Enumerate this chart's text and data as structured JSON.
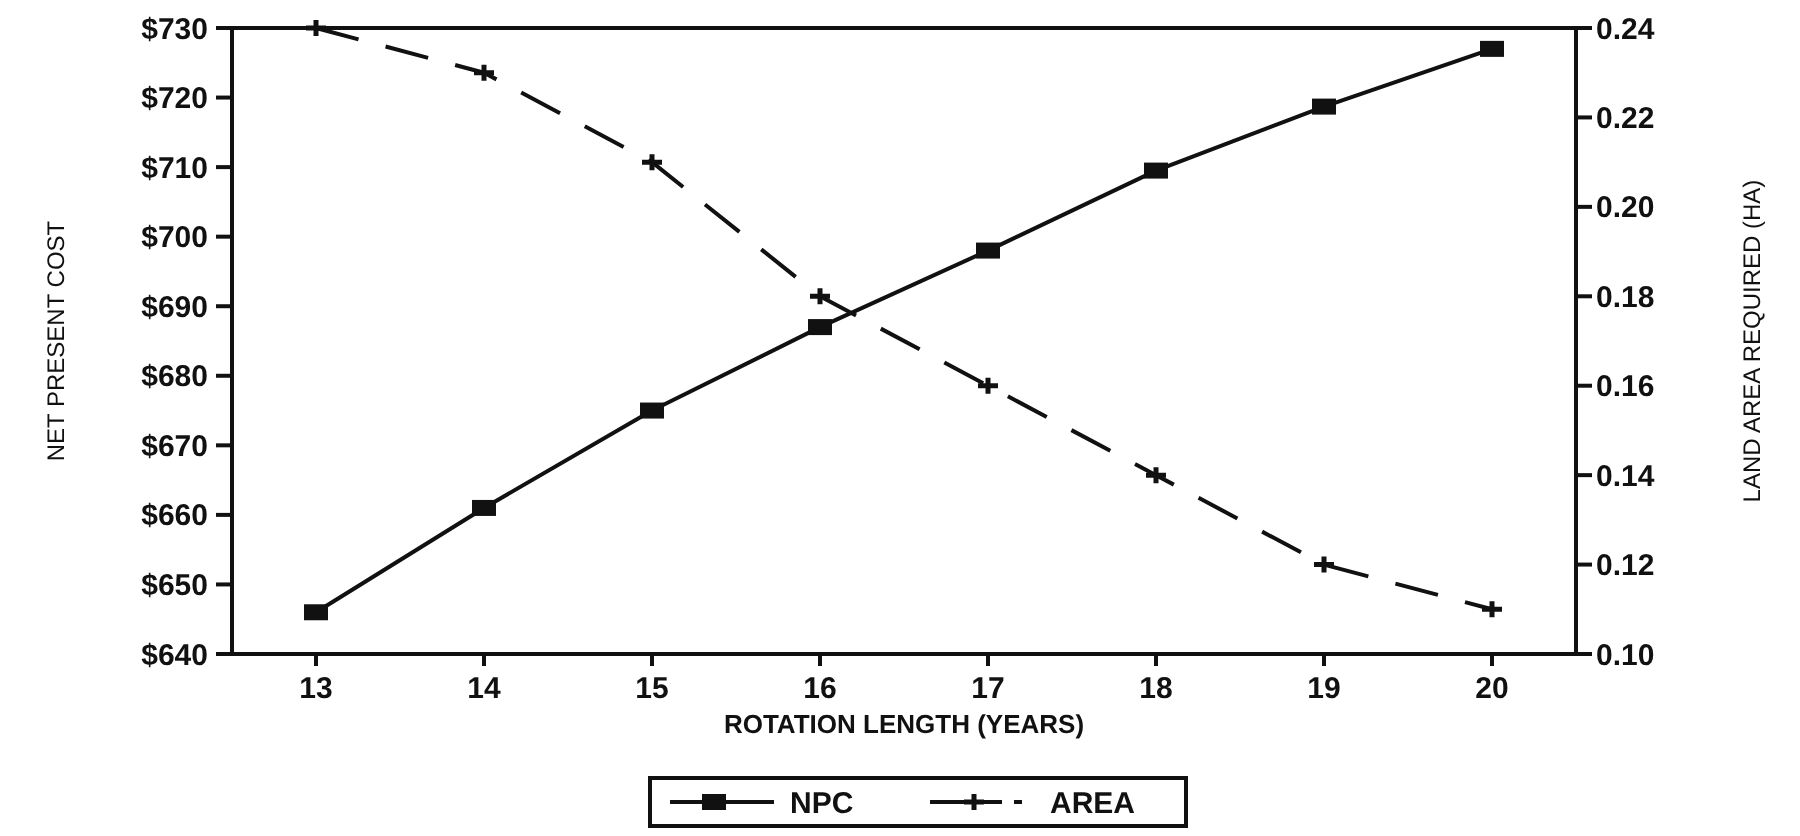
{
  "chart_data": {
    "type": "line",
    "xlabel": "ROTATION LENGTH (YEARS)",
    "ylabel": "NET PRESENT COST",
    "y2label": "LAND AREA REQUIRED (HA)",
    "x": [
      13,
      14,
      15,
      16,
      17,
      18,
      19,
      20
    ],
    "xlim": [
      12.5,
      20.5
    ],
    "xticks": [
      13,
      14,
      15,
      16,
      17,
      18,
      19,
      20
    ],
    "ylim": [
      640,
      730
    ],
    "yticks": [
      {
        "value": 640,
        "label": "$640"
      },
      {
        "value": 650,
        "label": "$650"
      },
      {
        "value": 660,
        "label": "$660"
      },
      {
        "value": 670,
        "label": "$670"
      },
      {
        "value": 680,
        "label": "$680"
      },
      {
        "value": 690,
        "label": "$690"
      },
      {
        "value": 700,
        "label": "$700"
      },
      {
        "value": 710,
        "label": "$710"
      },
      {
        "value": 720,
        "label": "$720"
      },
      {
        "value": 730,
        "label": "$730"
      }
    ],
    "y2lim": [
      0.1,
      0.24
    ],
    "y2ticks": [
      {
        "value": 0.1,
        "label": "0.10"
      },
      {
        "value": 0.12,
        "label": "0.12"
      },
      {
        "value": 0.14,
        "label": "0.14"
      },
      {
        "value": 0.16,
        "label": "0.16"
      },
      {
        "value": 0.18,
        "label": "0.18"
      },
      {
        "value": 0.2,
        "label": "0.20"
      },
      {
        "value": 0.22,
        "label": "0.22"
      },
      {
        "value": 0.24,
        "label": "0.24"
      }
    ],
    "series": [
      {
        "name": "NPC",
        "color": "#111111",
        "marker": "square",
        "line_style": "solid",
        "values": [
          646,
          661,
          675,
          687,
          698,
          709.5,
          718.7,
          727
        ]
      },
      {
        "name": "AREA",
        "color": "#111111",
        "marker": "cross",
        "line_style": "dashed",
        "axis": "y2",
        "values": [
          0.24,
          0.23,
          0.21,
          0.18,
          0.16,
          0.14,
          0.12,
          0.11
        ]
      }
    ],
    "grid": false,
    "legend": "bottom"
  }
}
